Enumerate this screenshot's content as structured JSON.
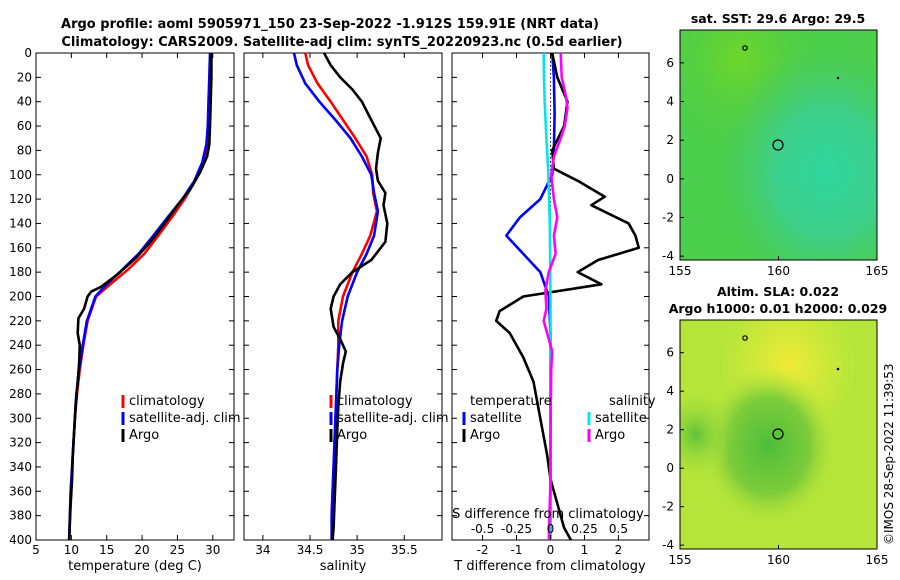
{
  "title": {
    "line1": "Argo profile: aoml 5905971_150 23-Sep-2022 -1.912S 159.91E (NRT data)",
    "line2": "Climatology: CARS2009. Satellite-adj clim: synTS_20220923.nc (0.5d earlier)"
  },
  "colors": {
    "climatology": "#ff0000",
    "satellite": "#0000ff",
    "argo": "#000000",
    "sal_satellite": "#00e5ee",
    "sal_argo": "#ff00ff"
  },
  "chart_data": [
    {
      "id": "temperature",
      "type": "line",
      "xlabel": "temperature (deg C)",
      "ylabel": "",
      "xlim": [
        5,
        33
      ],
      "ylim": [
        400,
        0
      ],
      "xticks": [
        "5",
        "10",
        "15",
        "20",
        "25",
        "30"
      ],
      "yticks": [
        "0",
        "20",
        "40",
        "60",
        "80",
        "100",
        "120",
        "140",
        "160",
        "180",
        "200",
        "220",
        "240",
        "260",
        "280",
        "300",
        "320",
        "340",
        "360",
        "380",
        "400"
      ],
      "legend": [
        "climatology",
        "satellite-adj. clim",
        "Argo"
      ],
      "series": [
        {
          "name": "climatology",
          "color": "#ff0000",
          "points": [
            [
              29.7,
              0
            ],
            [
              29.6,
              20
            ],
            [
              29.5,
              40
            ],
            [
              29.4,
              60
            ],
            [
              29.3,
              75
            ],
            [
              28.7,
              90
            ],
            [
              27.5,
              105
            ],
            [
              26,
              120
            ],
            [
              24.2,
              135
            ],
            [
              22.3,
              150
            ],
            [
              20.3,
              165
            ],
            [
              18,
              178
            ],
            [
              15.5,
              190
            ],
            [
              13.5,
              200
            ],
            [
              12.3,
              220
            ],
            [
              11.7,
              240
            ],
            [
              11.2,
              260
            ],
            [
              10.8,
              280
            ],
            [
              10.5,
              300
            ],
            [
              10.3,
              320
            ],
            [
              10.1,
              340
            ],
            [
              9.9,
              360
            ],
            [
              9.8,
              380
            ],
            [
              9.7,
              400
            ]
          ]
        },
        {
          "name": "satellite-adj. clim",
          "color": "#0000ff",
          "points": [
            [
              29.6,
              0
            ],
            [
              29.5,
              20
            ],
            [
              29.4,
              40
            ],
            [
              29.3,
              60
            ],
            [
              29.1,
              75
            ],
            [
              28.5,
              90
            ],
            [
              27.4,
              105
            ],
            [
              25.7,
              120
            ],
            [
              23.6,
              135
            ],
            [
              21.6,
              150
            ],
            [
              19.5,
              165
            ],
            [
              17.2,
              178
            ],
            [
              15,
              190
            ],
            [
              13.4,
              200
            ],
            [
              12.2,
              220
            ],
            [
              11.6,
              240
            ],
            [
              11.1,
              260
            ],
            [
              10.7,
              280
            ],
            [
              10.5,
              300
            ],
            [
              10.3,
              320
            ],
            [
              10.1,
              340
            ],
            [
              9.9,
              360
            ],
            [
              9.8,
              380
            ],
            [
              9.7,
              400
            ]
          ]
        },
        {
          "name": "Argo",
          "color": "#000000",
          "points": [
            [
              29.8,
              0
            ],
            [
              29.8,
              20
            ],
            [
              29.7,
              40
            ],
            [
              29.6,
              60
            ],
            [
              29.5,
              75
            ],
            [
              29.2,
              85
            ],
            [
              28.2,
              98
            ],
            [
              26.8,
              112
            ],
            [
              25,
              125
            ],
            [
              23.2,
              140
            ],
            [
              21.2,
              155
            ],
            [
              19.2,
              168
            ],
            [
              16.5,
              182
            ],
            [
              14.2,
              192
            ],
            [
              12.8,
              196
            ],
            [
              12.3,
              200
            ],
            [
              11.8,
              210
            ],
            [
              11,
              218
            ],
            [
              10.9,
              230
            ],
            [
              11.2,
              240
            ],
            [
              11.1,
              255
            ],
            [
              10.9,
              270
            ],
            [
              10.6,
              290
            ],
            [
              10.4,
              310
            ],
            [
              10.2,
              330
            ],
            [
              10.1,
              350
            ],
            [
              9.9,
              370
            ],
            [
              9.8,
              385
            ],
            [
              9.7,
              400
            ]
          ]
        }
      ]
    },
    {
      "id": "salinity",
      "type": "line",
      "xlabel": "salinity",
      "ylabel": "",
      "xlim": [
        33.8,
        35.9
      ],
      "ylim": [
        400,
        0
      ],
      "xticks": [
        "34",
        "34.5",
        "35",
        "35.5"
      ],
      "legend": [
        "climatology",
        "satellite-adj. clim",
        "Argo"
      ],
      "series": [
        {
          "name": "climatology",
          "color": "#ff0000",
          "points": [
            [
              34.45,
              0
            ],
            [
              34.48,
              10
            ],
            [
              34.58,
              25
            ],
            [
              34.72,
              40
            ],
            [
              34.85,
              55
            ],
            [
              34.98,
              70
            ],
            [
              35.1,
              85
            ],
            [
              35.16,
              100
            ],
            [
              35.17,
              115
            ],
            [
              35.21,
              130
            ],
            [
              35.14,
              150
            ],
            [
              35.05,
              165
            ],
            [
              34.95,
              180
            ],
            [
              34.85,
              200
            ],
            [
              34.8,
              220
            ],
            [
              34.8,
              240
            ],
            [
              34.79,
              260
            ],
            [
              34.78,
              280
            ],
            [
              34.77,
              300
            ],
            [
              34.76,
              320
            ],
            [
              34.75,
              340
            ],
            [
              34.74,
              360
            ],
            [
              34.73,
              380
            ],
            [
              34.73,
              400
            ]
          ]
        },
        {
          "name": "satellite-adj. clim",
          "color": "#0000ff",
          "points": [
            [
              34.33,
              0
            ],
            [
              34.36,
              10
            ],
            [
              34.45,
              25
            ],
            [
              34.6,
              40
            ],
            [
              34.77,
              55
            ],
            [
              34.93,
              70
            ],
            [
              35.05,
              85
            ],
            [
              35.15,
              100
            ],
            [
              35.18,
              115
            ],
            [
              35.22,
              130
            ],
            [
              35.18,
              150
            ],
            [
              35.1,
              165
            ],
            [
              35,
              180
            ],
            [
              34.9,
              200
            ],
            [
              34.84,
              220
            ],
            [
              34.81,
              240
            ],
            [
              34.79,
              260
            ],
            [
              34.78,
              280
            ],
            [
              34.77,
              300
            ],
            [
              34.76,
              320
            ],
            [
              34.75,
              340
            ],
            [
              34.74,
              360
            ],
            [
              34.73,
              380
            ],
            [
              34.73,
              400
            ]
          ]
        },
        {
          "name": "Argo",
          "color": "#000000",
          "points": [
            [
              34.65,
              0
            ],
            [
              34.72,
              10
            ],
            [
              34.82,
              20
            ],
            [
              34.95,
              30
            ],
            [
              35.05,
              40
            ],
            [
              35.15,
              55
            ],
            [
              35.25,
              70
            ],
            [
              35.22,
              82
            ],
            [
              35.2,
              95
            ],
            [
              35.22,
              105
            ],
            [
              35.3,
              115
            ],
            [
              35.28,
              125
            ],
            [
              35.32,
              140
            ],
            [
              35.3,
              155
            ],
            [
              35.15,
              170
            ],
            [
              34.95,
              180
            ],
            [
              34.82,
              190
            ],
            [
              34.75,
              200
            ],
            [
              34.72,
              210
            ],
            [
              34.75,
              225
            ],
            [
              34.82,
              235
            ],
            [
              34.88,
              245
            ],
            [
              34.85,
              255
            ],
            [
              34.82,
              270
            ],
            [
              34.8,
              290
            ],
            [
              34.79,
              310
            ],
            [
              34.78,
              330
            ],
            [
              34.77,
              350
            ],
            [
              34.76,
              370
            ],
            [
              34.75,
              390
            ],
            [
              34.74,
              400
            ]
          ]
        }
      ]
    },
    {
      "id": "difference",
      "type": "line",
      "xlabel": "T difference from climatology",
      "xlabel2": "S difference from climatology",
      "xlim": [
        -2.9,
        2.9
      ],
      "ylim": [
        400,
        0
      ],
      "xticks": [
        "-2",
        "-1",
        "0",
        "1",
        "2"
      ],
      "sticks": [
        "-0.5",
        "-0.25",
        "0",
        "0.25",
        "0.5"
      ],
      "legend_headers": [
        "temperature",
        "salinity"
      ],
      "legend": [
        "satellite",
        "Argo",
        "satellite",
        "Argo"
      ],
      "series": [
        {
          "name": "T satellite",
          "color": "#0000ff",
          "points": [
            [
              0.05,
              0
            ],
            [
              0.1,
              20
            ],
            [
              0.12,
              50
            ],
            [
              0.1,
              80
            ],
            [
              0.05,
              100
            ],
            [
              -0.3,
              120
            ],
            [
              -0.9,
              135
            ],
            [
              -1.3,
              150
            ],
            [
              -0.8,
              165
            ],
            [
              -0.3,
              180
            ],
            [
              -0.05,
              200
            ],
            [
              0,
              230
            ],
            [
              0,
              300
            ],
            [
              0,
              400
            ]
          ]
        },
        {
          "name": "T Argo",
          "color": "#000000",
          "points": [
            [
              0.05,
              0
            ],
            [
              0.2,
              20
            ],
            [
              0.5,
              40
            ],
            [
              0.4,
              60
            ],
            [
              0.05,
              80
            ],
            [
              0.1,
              95
            ],
            [
              0.8,
              105
            ],
            [
              1.6,
              118
            ],
            [
              1.2,
              125
            ],
            [
              2.3,
              140
            ],
            [
              2.5,
              150
            ],
            [
              2.6,
              160
            ],
            [
              1.4,
              170
            ],
            [
              0.8,
              180
            ],
            [
              1.5,
              190
            ],
            [
              -0.8,
              200
            ],
            [
              -1.5,
              212
            ],
            [
              -1.6,
              220
            ],
            [
              -1.2,
              230
            ],
            [
              -0.8,
              250
            ],
            [
              -0.5,
              270
            ],
            [
              -0.3,
              300
            ],
            [
              -0.1,
              330
            ],
            [
              0,
              350
            ],
            [
              0.2,
              370
            ],
            [
              0.4,
              390
            ],
            [
              0.6,
              400
            ]
          ]
        },
        {
          "name": "S satellite",
          "color": "#00e5ee",
          "points": [
            [
              -0.2,
              0
            ],
            [
              -0.19,
              20
            ],
            [
              -0.17,
              40
            ],
            [
              -0.12,
              70
            ],
            [
              -0.08,
              90
            ],
            [
              -0.05,
              110
            ],
            [
              -0.02,
              140
            ],
            [
              -0.01,
              170
            ],
            [
              0,
              200
            ],
            [
              0,
              260
            ],
            [
              0,
              320
            ],
            [
              0,
              400
            ]
          ]
        },
        {
          "name": "S Argo",
          "color": "#ff00ff",
          "points": [
            [
              0.3,
              0
            ],
            [
              0.33,
              20
            ],
            [
              0.45,
              35
            ],
            [
              0.5,
              45
            ],
            [
              0.42,
              60
            ],
            [
              0.3,
              70
            ],
            [
              0.1,
              85
            ],
            [
              0.02,
              100
            ],
            [
              0.1,
              120
            ],
            [
              0.2,
              135
            ],
            [
              0.1,
              150
            ],
            [
              0.15,
              165
            ],
            [
              -0.05,
              180
            ],
            [
              -0.15,
              195
            ],
            [
              -0.12,
              210
            ],
            [
              -0.2,
              220
            ],
            [
              -0.1,
              230
            ],
            [
              0.05,
              245
            ],
            [
              0.02,
              260
            ],
            [
              0.01,
              290
            ],
            [
              0,
              320
            ],
            [
              0,
              350
            ],
            [
              -0.03,
              380
            ],
            [
              -0.05,
              400
            ]
          ]
        }
      ]
    }
  ],
  "maps": {
    "sst": {
      "title": "sat. SST: 29.6 Argo: 29.5",
      "xticks": [
        "155",
        "160",
        "165"
      ],
      "yticks": [
        "6",
        "4",
        "2",
        "0",
        "-2",
        "-4"
      ]
    },
    "sla": {
      "title1": "Altim. SLA: 0.022",
      "title2": "Argo h1000: 0.01 h2000: 0.029",
      "xticks": [
        "155",
        "160",
        "165"
      ],
      "yticks": [
        "6",
        "4",
        "2",
        "0",
        "-2",
        "-4"
      ]
    }
  },
  "credit": "©IMOS 28-Sep-2022 11:39:53"
}
